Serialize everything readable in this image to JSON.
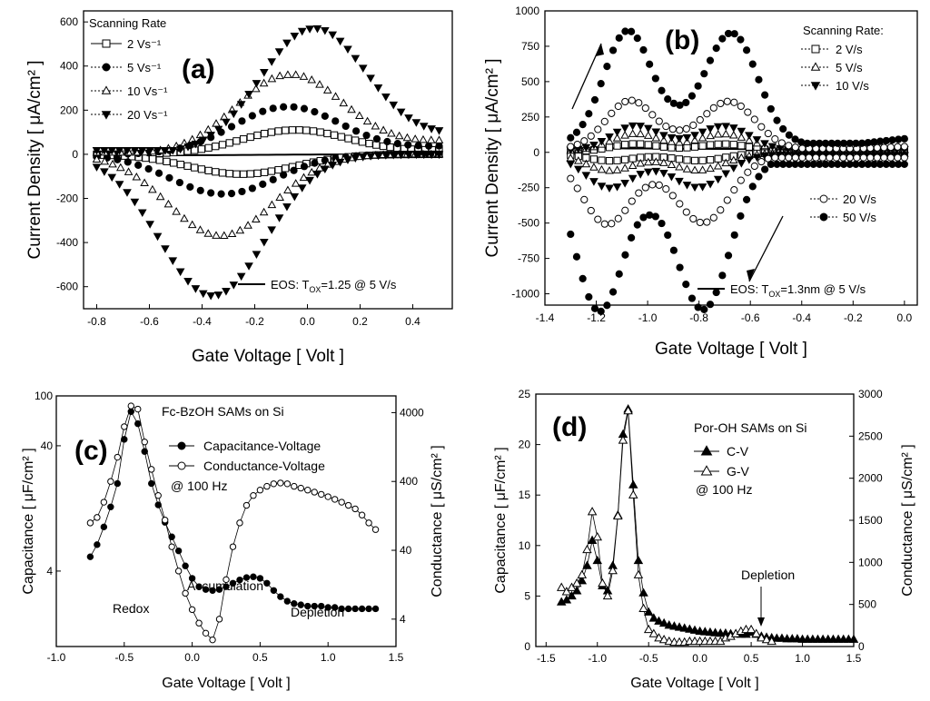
{
  "chart_data": [
    {
      "panel": "(a)",
      "type": "scatter",
      "xlabel": "Gate Voltage [ Volt ]",
      "ylabel": "Current Density [ μA/cm² ]",
      "xlim": [
        -0.85,
        0.55
      ],
      "ylim": [
        -700,
        650
      ],
      "xticks": [
        -0.8,
        -0.6,
        -0.4,
        -0.2,
        0.0,
        0.2,
        0.4
      ],
      "xtick_labels": [
        "-0.8",
        "-0.6",
        "-0.4",
        "-0.2",
        "0.0",
        "0.2",
        "0.4"
      ],
      "yticks": [
        -600,
        -400,
        -200,
        0,
        200,
        400,
        600
      ],
      "ytick_labels": [
        "-600",
        "-400",
        "-200",
        "0",
        "200",
        "400",
        "600"
      ],
      "legend_title": "Scanning Rate",
      "series": [
        {
          "name": "2 Vs⁻¹",
          "marker": "square-open",
          "ox": -0.05,
          "ph": 110,
          "rx": -0.25,
          "rh": 90,
          "n": 50,
          "x0": -0.8,
          "x1": 0.5
        },
        {
          "name": "5 Vs⁻¹",
          "marker": "circle-filled",
          "ox": -0.08,
          "ph": 215,
          "rx": -0.32,
          "rh": 180,
          "n": 34,
          "x0": -0.8,
          "x1": 0.5
        },
        {
          "name": "10 Vs⁻¹",
          "marker": "triangle-up-open",
          "ox": -0.07,
          "ph": 360,
          "rx": -0.33,
          "rh": 370,
          "n": 44,
          "x0": -0.8,
          "x1": 0.5
        },
        {
          "name": "20 Vs⁻¹",
          "marker": "triangle-down-filled",
          "ox": 0.02,
          "ph": 570,
          "rx": -0.36,
          "rh": 640,
          "n": 46,
          "x0": -0.8,
          "x1": 0.5
        }
      ],
      "reference_line": {
        "name": "EOS: Tₒₓ=1.25 @ 5 V/s",
        "label_main": "EOS: T",
        "label_sub": "OX",
        "label_tail": "=1.25 @ 5 V/s"
      }
    },
    {
      "panel": "(b)",
      "type": "scatter",
      "xlabel": "Gate Voltage [ Volt ]",
      "ylabel": "Current Density [ μA/cm² ]",
      "xlim": [
        -1.4,
        0.05
      ],
      "ylim": [
        -1080,
        1000
      ],
      "xticks": [
        -1.4,
        -1.2,
        -1.0,
        -0.8,
        -0.6,
        -0.4,
        -0.2,
        0.0
      ],
      "xtick_labels": [
        "-1.4",
        "-1.2",
        "-1.0",
        "-0.8",
        "-0.6",
        "-0.4",
        "-0.2",
        "0.0"
      ],
      "yticks": [
        -1000,
        -750,
        -500,
        -250,
        0,
        250,
        500,
        750,
        1000
      ],
      "ytick_labels": [
        "-1000",
        "-750",
        "-500",
        "-250",
        "0",
        "250",
        "500",
        "750",
        "1000"
      ],
      "legend_title": "Scanning Rate:",
      "series": [
        {
          "name": "2 V/s",
          "marker": "square-open",
          "ox1": -1.05,
          "ox2": -0.7,
          "ph": 55,
          "rx1": -1.15,
          "rx2": -0.8,
          "rh": 55,
          "n": 44
        },
        {
          "name": "5 V/s",
          "marker": "triangle-up-open",
          "ox1": -1.05,
          "ox2": -0.7,
          "ph": 120,
          "rx1": -1.15,
          "rx2": -0.8,
          "rh": 120,
          "n": 44
        },
        {
          "name": "10 V/s",
          "marker": "triangle-down-filled",
          "ox1": -1.05,
          "ox2": -0.7,
          "ph": 175,
          "rx1": -1.15,
          "rx2": -0.8,
          "rh": 230,
          "n": 44
        },
        {
          "name": "20 V/s",
          "marker": "circle-open",
          "ox1": -1.07,
          "ox2": -0.68,
          "ph": 340,
          "rx1": -1.16,
          "rx2": -0.78,
          "rh": 470,
          "n": 50
        },
        {
          "name": "50 V/s",
          "marker": "circle-filled",
          "ox1": -1.08,
          "ox2": -0.67,
          "ph": 800,
          "rx1": -1.19,
          "rx2": -0.78,
          "rh": 1050,
          "n": 56
        }
      ],
      "reference_line": {
        "name": "EOS: Tₒₓ=1.3nm @ 5 V/s",
        "label_main": "EOS: T",
        "label_sub": "OX",
        "label_tail": "=1.3nm @ 5 V/s"
      }
    },
    {
      "panel": "(c)",
      "type": "line",
      "title": "Fc-BzOH SAMs on Si",
      "xlabel": "Gate Voltage [ Volt ]",
      "ylabel": "Capacitance [ μF/cm² ]",
      "ylabel_right": "Conductance [ μS/cm² ]",
      "xlim": [
        -1.0,
        1.5
      ],
      "ylim_left_log": [
        1.0,
        100
      ],
      "ylim_right_log": [
        1.6,
        7000
      ],
      "xticks": [
        -1.0,
        -0.5,
        0.0,
        0.5,
        1.0,
        1.5
      ],
      "xtick_labels": [
        "-1.0",
        "-0.5",
        "0.0",
        "0.5",
        "1.0",
        "1.5"
      ],
      "yticks_left": [
        4,
        40,
        100
      ],
      "ytick_left_labels": [
        "4",
        "40",
        "100"
      ],
      "yticks_right": [
        4,
        40,
        400,
        4000
      ],
      "ytick_right_labels": [
        "4",
        "40",
        "400",
        "4000"
      ],
      "series": [
        {
          "name": "Capacitance-Voltage",
          "marker": "circle-filled",
          "axis": "left",
          "x": [
            -0.75,
            -0.7,
            -0.65,
            -0.6,
            -0.55,
            -0.5,
            -0.45,
            -0.4,
            -0.35,
            -0.3,
            -0.25,
            -0.2,
            -0.15,
            -0.1,
            -0.05,
            0.0,
            0.05,
            0.1,
            0.15,
            0.2,
            0.25,
            0.3,
            0.35,
            0.4,
            0.45,
            0.5,
            0.55,
            0.6,
            0.65,
            0.7,
            0.75,
            0.8,
            0.85,
            0.9,
            0.95,
            1.0,
            1.05,
            1.1,
            1.15,
            1.2,
            1.25,
            1.3,
            1.35
          ],
          "y": [
            5.2,
            6.5,
            9,
            13,
            20,
            45,
            75,
            60,
            36,
            20,
            13.5,
            9.8,
            7.5,
            5.8,
            4.4,
            3.5,
            3.0,
            2.85,
            2.8,
            2.85,
            3.0,
            3.2,
            3.4,
            3.55,
            3.6,
            3.5,
            3.2,
            2.8,
            2.5,
            2.3,
            2.2,
            2.15,
            2.1,
            2.1,
            2.1,
            2.05,
            2.05,
            2.0,
            2.0,
            2.0,
            2.0,
            2.0,
            2.0
          ]
        },
        {
          "name": "Conductance-Voltage",
          "marker": "circle-open",
          "axis": "right",
          "x": [
            -0.75,
            -0.7,
            -0.65,
            -0.6,
            -0.55,
            -0.5,
            -0.45,
            -0.4,
            -0.35,
            -0.3,
            -0.25,
            -0.2,
            -0.15,
            -0.1,
            -0.05,
            0.0,
            0.05,
            0.1,
            0.15,
            0.2,
            0.25,
            0.3,
            0.35,
            0.4,
            0.45,
            0.5,
            0.55,
            0.6,
            0.65,
            0.7,
            0.75,
            0.8,
            0.85,
            0.9,
            0.95,
            1.0,
            1.05,
            1.1,
            1.15,
            1.2,
            1.25,
            1.3,
            1.35
          ],
          "y": [
            100,
            120,
            200,
            400,
            900,
            2500,
            5000,
            4500,
            1500,
            600,
            250,
            110,
            45,
            20,
            9.5,
            5.5,
            3.5,
            2.5,
            2.0,
            4.0,
            15,
            45,
            100,
            180,
            250,
            300,
            340,
            370,
            380,
            370,
            340,
            320,
            300,
            280,
            260,
            240,
            220,
            200,
            180,
            160,
            130,
            100,
            80
          ]
        }
      ],
      "legend_note": "@ 100 Hz",
      "annotations": [
        "Accumulation",
        "Redox",
        "Depletion"
      ]
    },
    {
      "panel": "(d)",
      "type": "line",
      "title": "Por-OH SAMs on Si",
      "xlabel": "Gate Voltage [ Volt ]",
      "ylabel": "Capacitance [ μF/cm² ]",
      "ylabel_right": "Conductance [ μS/cm² ]",
      "xlim": [
        -1.6,
        1.5
      ],
      "ylim_left": [
        0,
        25
      ],
      "ylim_right": [
        0,
        3000
      ],
      "xticks": [
        -1.5,
        -1.0,
        -0.5,
        0.0,
        0.5,
        1.0,
        1.5
      ],
      "xtick_labels": [
        "-1.5",
        "-1.0",
        "-0.5",
        "0.0",
        "0.5",
        "1.0",
        "1.5"
      ],
      "yticks_left": [
        0,
        5,
        10,
        15,
        20,
        25
      ],
      "ytick_left_labels": [
        "0",
        "5",
        "10",
        "15",
        "20",
        "25"
      ],
      "yticks_right": [
        0,
        500,
        1000,
        1500,
        2000,
        2500,
        3000
      ],
      "ytick_right_labels": [
        "0",
        "500",
        "1000",
        "1500",
        "2000",
        "2500",
        "3000"
      ],
      "series": [
        {
          "name": "C-V",
          "marker": "triangle-up-filled",
          "axis": "left",
          "x": [
            -1.35,
            -1.3,
            -1.25,
            -1.2,
            -1.15,
            -1.1,
            -1.05,
            -1.0,
            -0.95,
            -0.9,
            -0.85,
            -0.8,
            -0.75,
            -0.7,
            -0.65,
            -0.6,
            -0.55,
            -0.5,
            -0.45,
            -0.4,
            -0.35,
            -0.3,
            -0.25,
            -0.2,
            -0.15,
            -0.1,
            -0.05,
            0.0,
            0.05,
            0.1,
            0.15,
            0.2,
            0.25,
            0.3,
            0.35,
            0.4,
            0.45,
            0.5,
            0.55,
            0.6,
            0.65,
            0.7,
            0.75,
            0.8,
            0.85,
            0.9,
            0.95,
            1.0,
            1.05,
            1.1,
            1.15,
            1.2,
            1.25,
            1.3,
            1.35,
            1.4,
            1.45,
            1.5
          ],
          "y": [
            4.4,
            4.6,
            5.0,
            5.5,
            6.5,
            8.0,
            10.5,
            8.5,
            6.0,
            5.5,
            8.0,
            13.0,
            21.0,
            23.5,
            16.0,
            8.5,
            5.3,
            3.4,
            2.8,
            2.5,
            2.3,
            2.1,
            2.0,
            1.9,
            1.8,
            1.7,
            1.6,
            1.5,
            1.45,
            1.4,
            1.35,
            1.3,
            1.3,
            1.25,
            1.25,
            1.2,
            1.2,
            1.4,
            1.2,
            1.0,
            0.9,
            0.85,
            0.8,
            0.8,
            0.75,
            0.75,
            0.75,
            0.7,
            0.7,
            0.7,
            0.7,
            0.7,
            0.7,
            0.7,
            0.7,
            0.7,
            0.7,
            0.7
          ]
        },
        {
          "name": "G-V",
          "marker": "triangle-up-open",
          "axis": "right",
          "x": [
            -1.35,
            -1.3,
            -1.25,
            -1.2,
            -1.15,
            -1.1,
            -1.05,
            -1.0,
            -0.95,
            -0.9,
            -0.85,
            -0.8,
            -0.75,
            -0.7,
            -0.65,
            -0.6,
            -0.55,
            -0.5,
            -0.45,
            -0.4,
            -0.35,
            -0.3,
            -0.25,
            -0.2,
            -0.15,
            -0.1,
            -0.05,
            0.0,
            0.05,
            0.1,
            0.15,
            0.2,
            0.25,
            0.3,
            0.35,
            0.4,
            0.45,
            0.5,
            0.55,
            0.6,
            0.65,
            0.7
          ],
          "y": [
            700,
            650,
            700,
            750,
            850,
            1150,
            1600,
            1300,
            750,
            600,
            900,
            1550,
            2450,
            2800,
            1800,
            850,
            450,
            200,
            150,
            100,
            80,
            60,
            50,
            50,
            50,
            60,
            60,
            60,
            60,
            60,
            60,
            60,
            100,
            120,
            150,
            180,
            200,
            200,
            150,
            100,
            80,
            60
          ]
        }
      ],
      "legend_note": "@ 100 Hz",
      "annotations": [
        "Depletion"
      ]
    }
  ]
}
